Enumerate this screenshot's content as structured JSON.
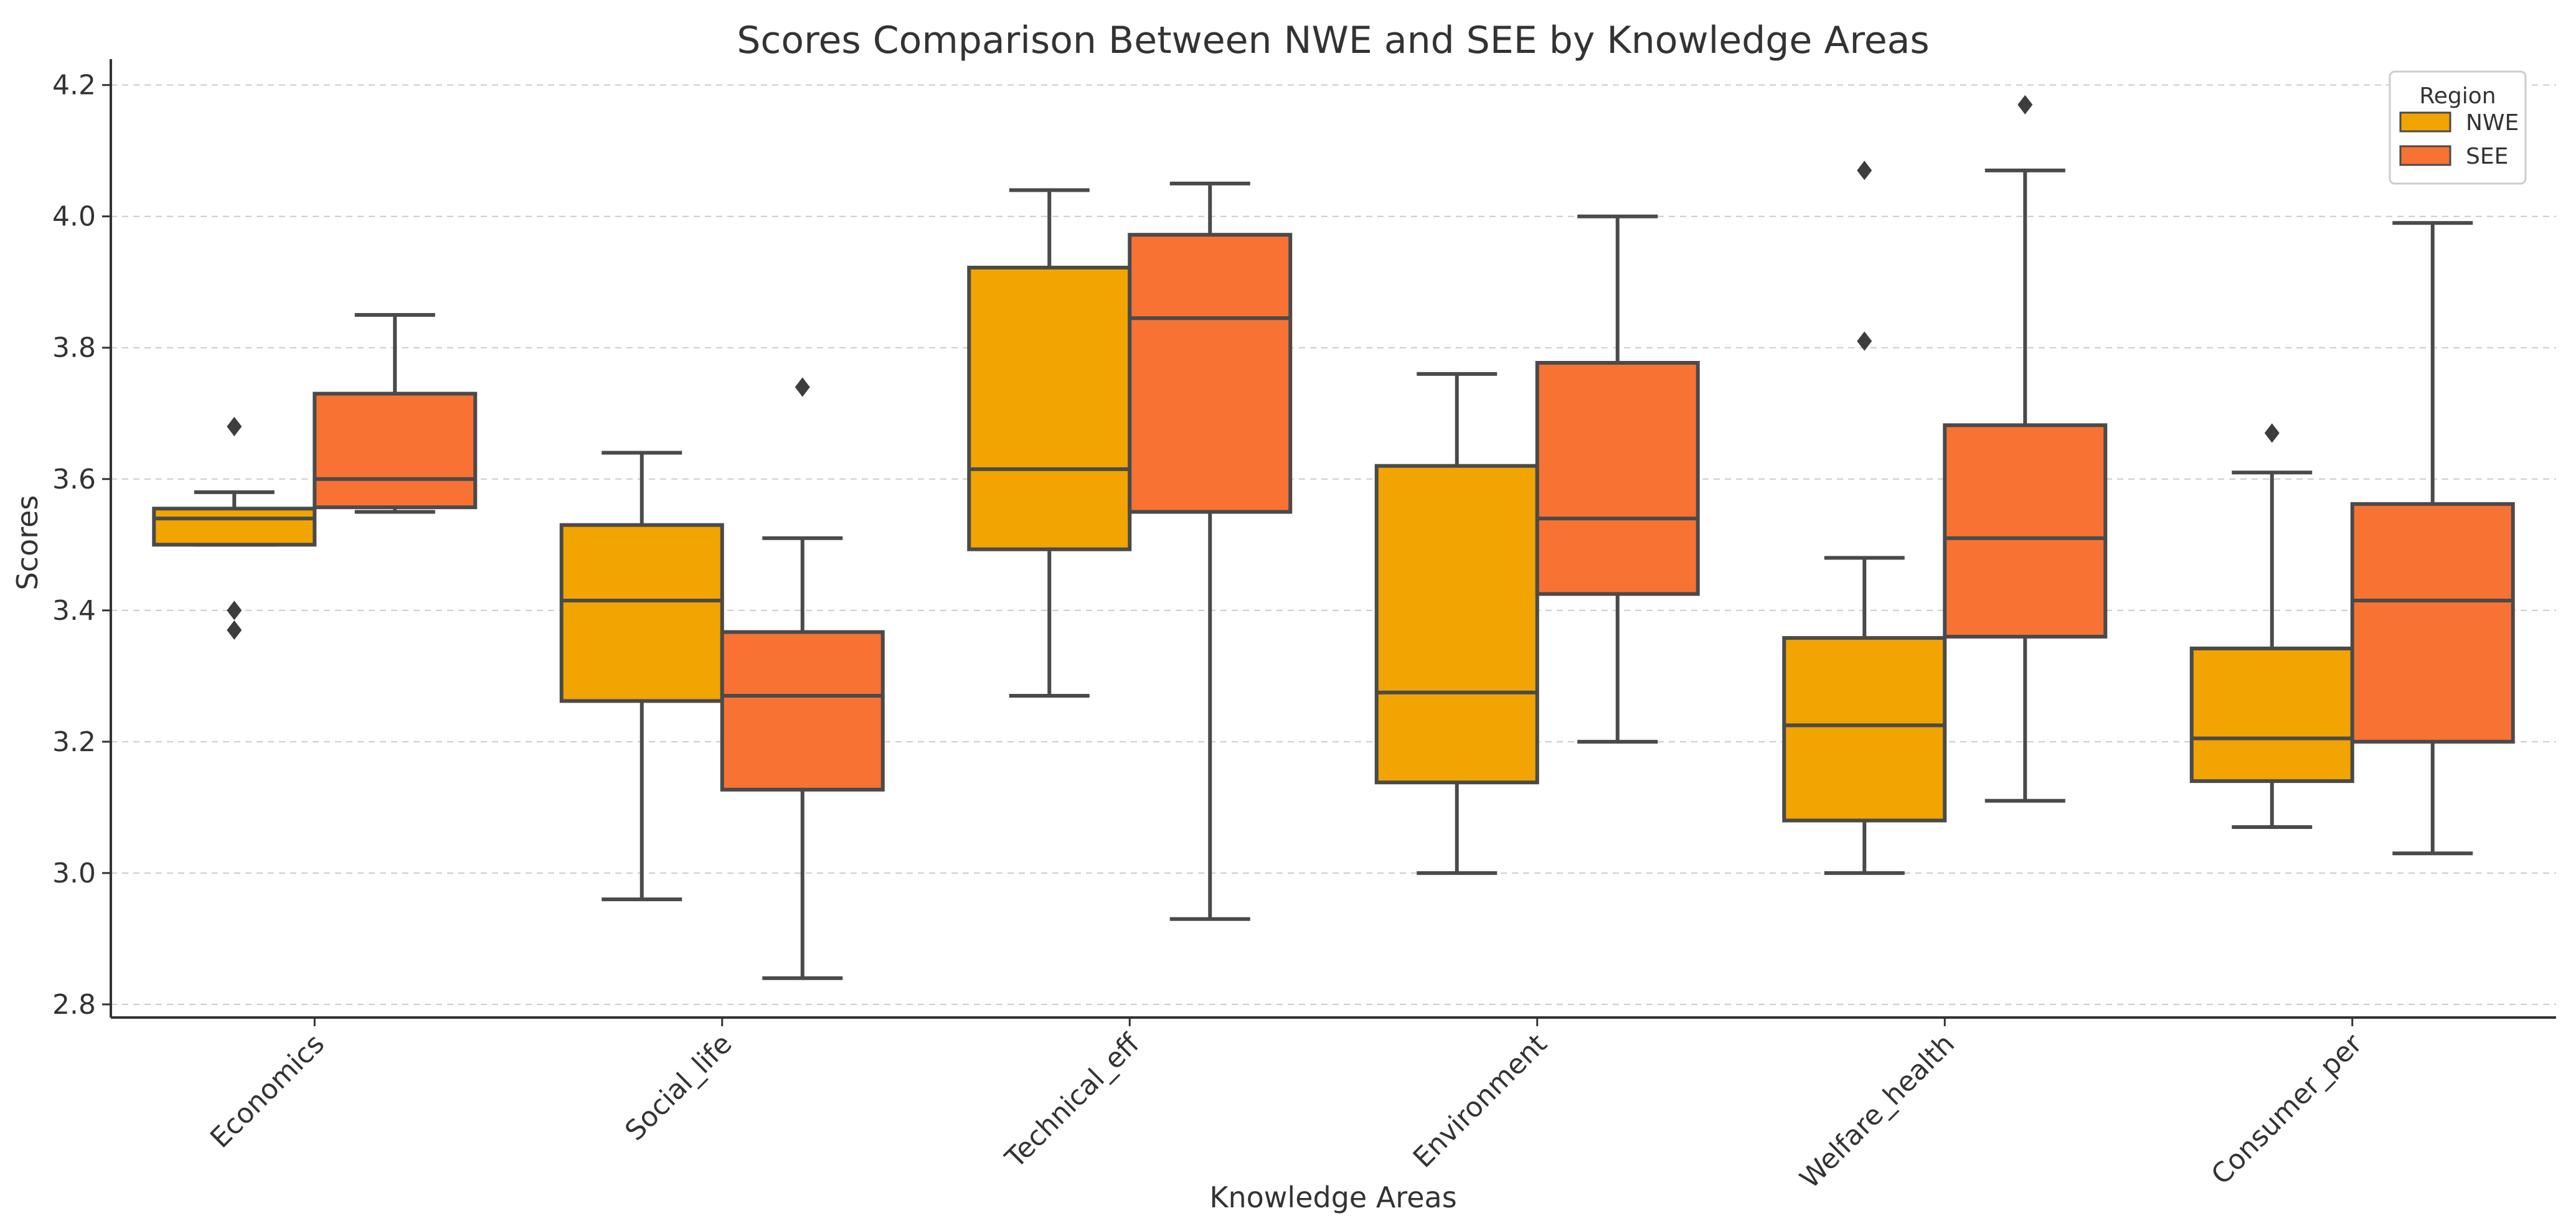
{
  "chart_data": {
    "type": "box",
    "title": "Scores Comparison Between NWE and SEE by Knowledge Areas",
    "xlabel": "Knowledge Areas",
    "ylabel": "Scores",
    "ylim": [
      2.78,
      4.23
    ],
    "yticks": [
      2.8,
      3.0,
      3.2,
      3.4,
      3.6,
      3.8,
      4.0,
      4.2
    ],
    "ytick_labels": [
      "2.8",
      "3.0",
      "3.2",
      "3.4",
      "3.6",
      "3.8",
      "4.0",
      "4.2"
    ],
    "grid": true,
    "legend": {
      "title": "Region",
      "position": "top-right"
    },
    "categories": [
      "Economics",
      "Social_life",
      "Technical_eff",
      "Environment",
      "Welfare_health",
      "Consumer_per"
    ],
    "series": [
      {
        "name": "NWE",
        "color": "#f2a400",
        "boxes": [
          {
            "whisker_low": 3.5,
            "q1": 3.5,
            "median": 3.54,
            "q3": 3.555,
            "whisker_high": 3.58,
            "outliers": [
              3.68,
              3.4,
              3.37
            ]
          },
          {
            "whisker_low": 2.96,
            "q1": 3.262,
            "median": 3.415,
            "q3": 3.53,
            "whisker_high": 3.64,
            "outliers": []
          },
          {
            "whisker_low": 3.27,
            "q1": 3.493,
            "median": 3.615,
            "q3": 3.922,
            "whisker_high": 4.04,
            "outliers": []
          },
          {
            "whisker_low": 3.0,
            "q1": 3.138,
            "median": 3.275,
            "q3": 3.62,
            "whisker_high": 3.76,
            "outliers": []
          },
          {
            "whisker_low": 3.0,
            "q1": 3.08,
            "median": 3.225,
            "q3": 3.358,
            "whisker_high": 3.48,
            "outliers": [
              4.07,
              3.81
            ]
          },
          {
            "whisker_low": 3.07,
            "q1": 3.14,
            "median": 3.205,
            "q3": 3.342,
            "whisker_high": 3.61,
            "outliers": [
              3.67
            ]
          }
        ]
      },
      {
        "name": "SEE",
        "color": "#f77233",
        "boxes": [
          {
            "whisker_low": 3.55,
            "q1": 3.557,
            "median": 3.6,
            "q3": 3.73,
            "whisker_high": 3.85,
            "outliers": []
          },
          {
            "whisker_low": 2.84,
            "q1": 3.127,
            "median": 3.27,
            "q3": 3.367,
            "whisker_high": 3.51,
            "outliers": [
              3.74
            ]
          },
          {
            "whisker_low": 2.93,
            "q1": 3.55,
            "median": 3.845,
            "q3": 3.972,
            "whisker_high": 4.05,
            "outliers": []
          },
          {
            "whisker_low": 3.2,
            "q1": 3.425,
            "median": 3.54,
            "q3": 3.777,
            "whisker_high": 4.0,
            "outliers": []
          },
          {
            "whisker_low": 3.11,
            "q1": 3.36,
            "median": 3.51,
            "q3": 3.682,
            "whisker_high": 4.07,
            "outliers": [
              4.17
            ]
          },
          {
            "whisker_low": 3.03,
            "q1": 3.2,
            "median": 3.415,
            "q3": 3.562,
            "whisker_high": 3.99,
            "outliers": []
          }
        ]
      }
    ]
  }
}
